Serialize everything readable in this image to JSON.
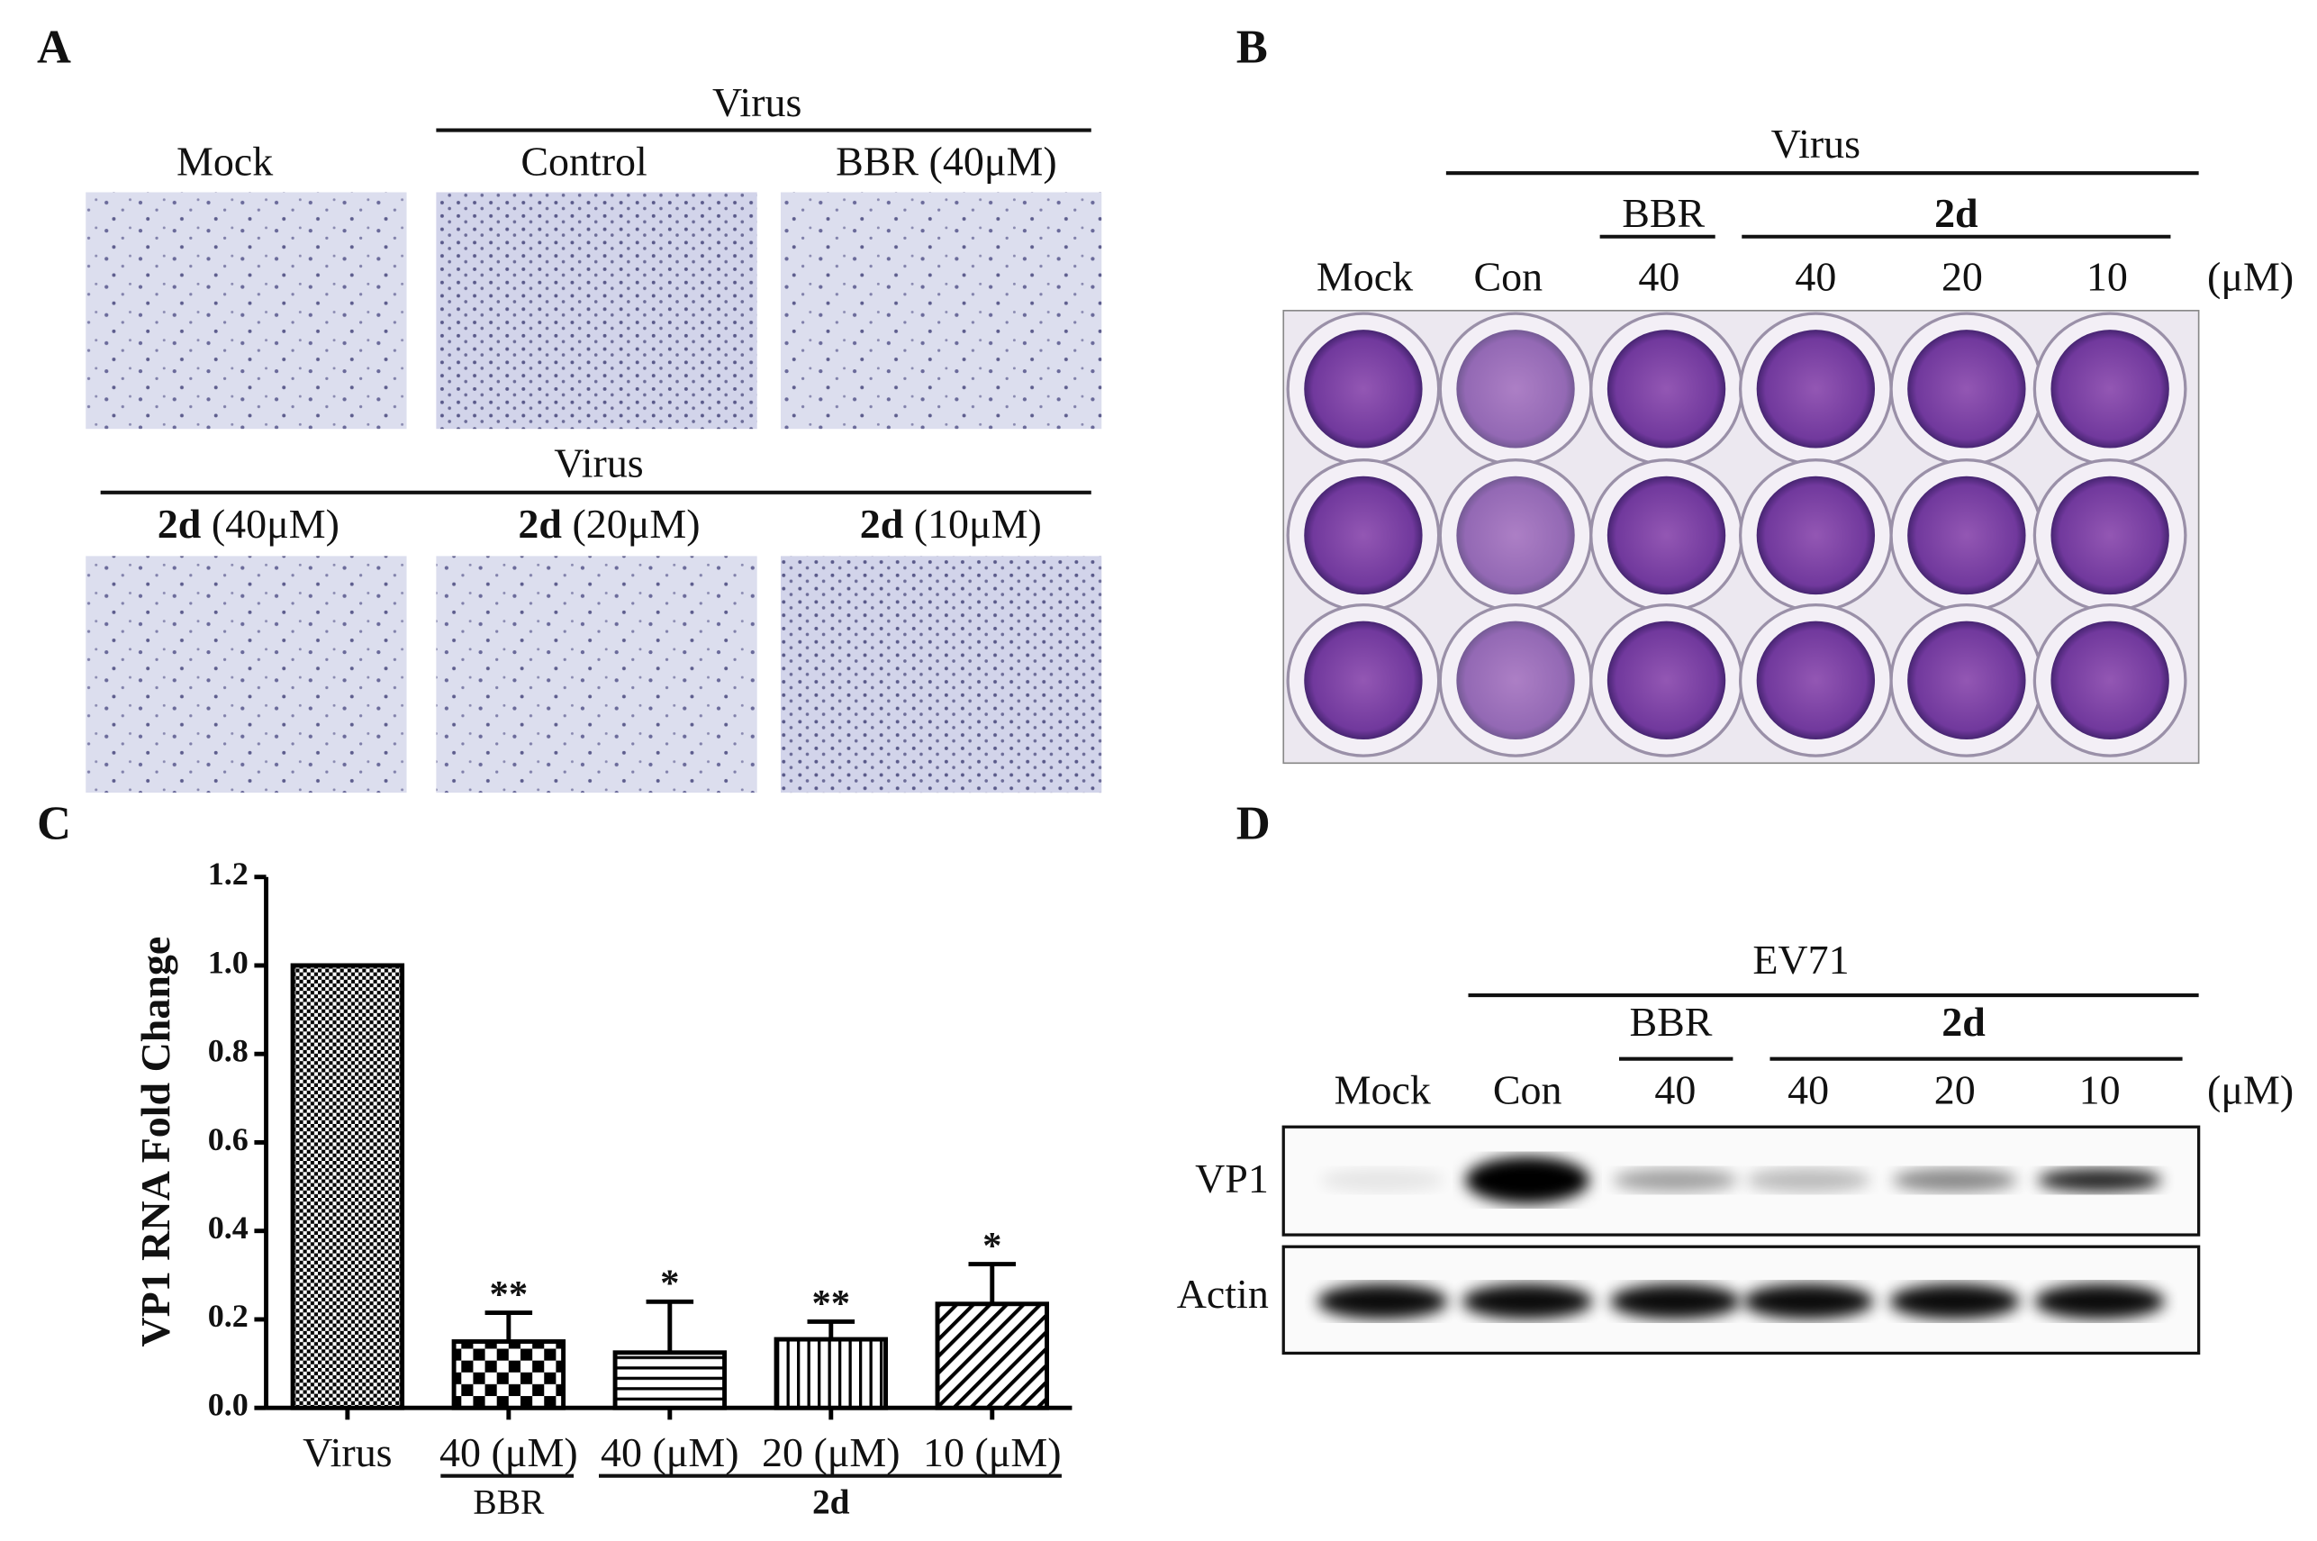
{
  "panel_a": {
    "label": "A",
    "row1_group": "Virus",
    "row1_labels": [
      "Mock",
      "Control",
      "BBR (40μM)"
    ],
    "row2_group": "Virus",
    "row2_labels": [
      {
        "compound": "2d",
        "dose": "(40μM)"
      },
      {
        "compound": "2d",
        "dose": "(20μM)"
      },
      {
        "compound": "2d",
        "dose": "(10μM)"
      }
    ]
  },
  "panel_b": {
    "label": "B",
    "group": "Virus",
    "bbr": "BBR",
    "compound": "2d",
    "columns": [
      "Mock",
      "Con",
      "40",
      "40",
      "20",
      "10"
    ],
    "unit": "(μM)"
  },
  "panel_d": {
    "label": "D",
    "group": "EV71",
    "bbr": "BBR",
    "compound": "2d",
    "columns": [
      "Mock",
      "Con",
      "40",
      "40",
      "20",
      "10"
    ],
    "unit": "(μM)",
    "rows": [
      "VP1",
      "Actin"
    ]
  },
  "chart_data": {
    "type": "bar",
    "panel_label": "C",
    "y_label": "VP1 RNA Fold Change",
    "categories": [
      "Virus",
      "40 (μM)",
      "40 (μM)",
      "20 (μM)",
      "10 (μM)"
    ],
    "values": [
      1.0,
      0.15,
      0.125,
      0.155,
      0.235
    ],
    "errors": [
      null,
      0.065,
      0.115,
      0.04,
      0.09
    ],
    "annotations": [
      null,
      "**",
      "*",
      "**",
      "*"
    ],
    "groups": [
      "BBR",
      "2d"
    ],
    "color": "#000000",
    "ylim": [
      0,
      1.2
    ],
    "yticks": [
      {
        "value": 0,
        "label": "0.0"
      },
      0.2,
      0.4,
      0.6,
      0.8,
      {
        "value": 1,
        "label": "1.0"
      },
      1.2
    ]
  }
}
